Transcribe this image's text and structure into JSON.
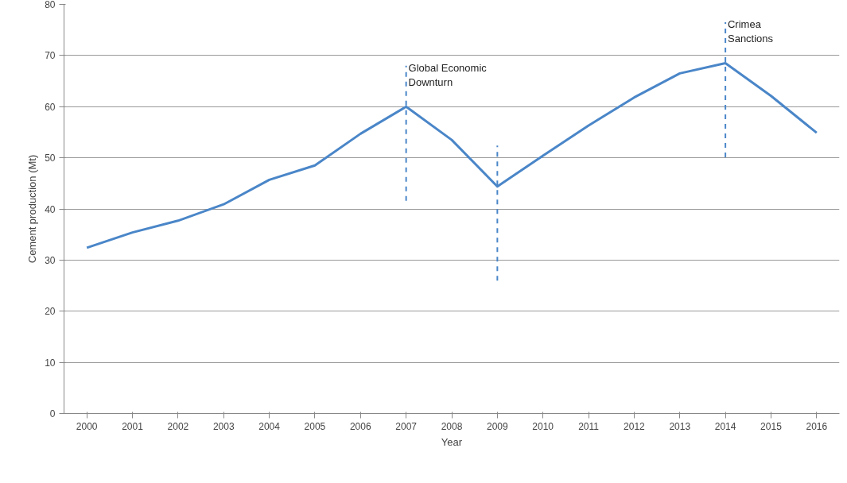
{
  "chart_data": {
    "type": "line",
    "xlabel": "Year",
    "ylabel": "Cement production (Mt)",
    "x": [
      2000,
      2001,
      2002,
      2003,
      2004,
      2005,
      2006,
      2007,
      2008,
      2009,
      2010,
      2011,
      2012,
      2013,
      2014,
      2015,
      2016
    ],
    "series": [
      {
        "color": "#4a86c8",
        "values": [
          32.4,
          35.4,
          37.7,
          40.9,
          45.7,
          48.5,
          54.7,
          60.0,
          53.5,
          44.4,
          50.4,
          56.3,
          61.8,
          66.5,
          68.5,
          62.1,
          54.9
        ]
      }
    ],
    "xlim": [
      1999.5,
      2016.5
    ],
    "xticks": [
      2000,
      2001,
      2002,
      2003,
      2004,
      2005,
      2006,
      2007,
      2008,
      2009,
      2010,
      2011,
      2012,
      2013,
      2014,
      2015,
      2016
    ],
    "ylim": [
      0,
      80
    ],
    "yticks": [
      0,
      10,
      20,
      30,
      40,
      50,
      60,
      70,
      80
    ],
    "grid": "y",
    "line_style": "solid",
    "ref_lines": [
      {
        "axis": "x",
        "value": 2007,
        "label": "Global Economic Downturn",
        "color": "#4a86c8",
        "line_style": "dashed"
      },
      {
        "axis": "x",
        "value": 2009,
        "color": "#4a86c8",
        "line_style": "dashed"
      },
      {
        "axis": "x",
        "value": 2014,
        "label": "Crimea Sanctions",
        "color": "#4a86c8",
        "line_style": "dashed"
      }
    ]
  }
}
